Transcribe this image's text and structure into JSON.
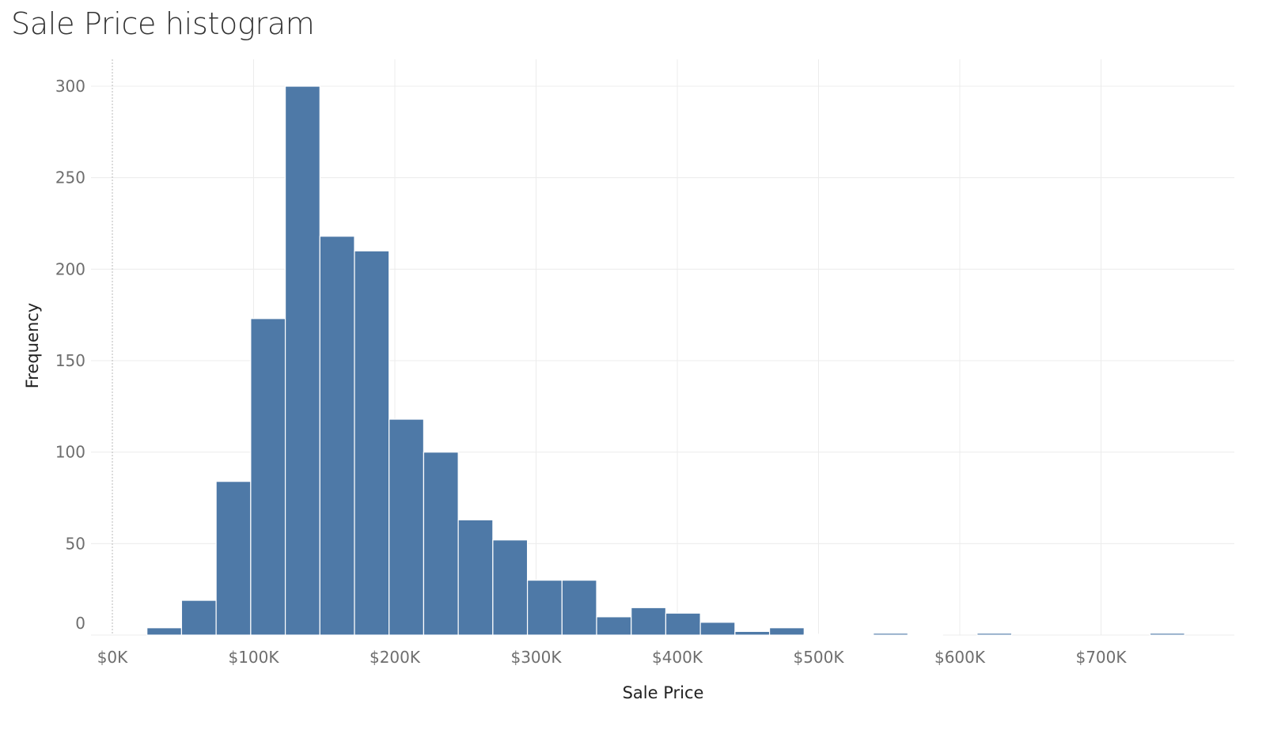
{
  "chart_data": {
    "type": "bar",
    "title": "Sale Price histogram",
    "xlabel": "Sale Price",
    "ylabel": "Frequency",
    "xlim": [
      0,
      820000
    ],
    "ylim": [
      0,
      300
    ],
    "x_ticks": [
      0,
      100000,
      200000,
      300000,
      400000,
      500000,
      600000,
      700000
    ],
    "x_tick_labels": [
      "$0K",
      "$100K",
      "$200K",
      "$300K",
      "$400K",
      "$500K",
      "$600K",
      "$700K"
    ],
    "y_ticks": [
      0,
      50,
      100,
      150,
      200,
      250,
      300
    ],
    "y_tick_labels": [
      "0",
      "50",
      "100",
      "150",
      "200",
      "250",
      "300"
    ],
    "bin_width": 24490,
    "bin_start": 24490,
    "bins": [
      {
        "start": 24490,
        "end": 48980,
        "count": 4
      },
      {
        "start": 48980,
        "end": 73470,
        "count": 19
      },
      {
        "start": 73470,
        "end": 97960,
        "count": 84
      },
      {
        "start": 97960,
        "end": 122450,
        "count": 173
      },
      {
        "start": 122450,
        "end": 146940,
        "count": 300
      },
      {
        "start": 146940,
        "end": 171430,
        "count": 218
      },
      {
        "start": 171430,
        "end": 195920,
        "count": 210
      },
      {
        "start": 195920,
        "end": 220410,
        "count": 118
      },
      {
        "start": 220410,
        "end": 244900,
        "count": 100
      },
      {
        "start": 244900,
        "end": 269390,
        "count": 63
      },
      {
        "start": 269390,
        "end": 293880,
        "count": 52
      },
      {
        "start": 293880,
        "end": 318370,
        "count": 30
      },
      {
        "start": 318370,
        "end": 342860,
        "count": 30
      },
      {
        "start": 342860,
        "end": 367350,
        "count": 10
      },
      {
        "start": 367350,
        "end": 391840,
        "count": 15
      },
      {
        "start": 391840,
        "end": 416330,
        "count": 12
      },
      {
        "start": 416330,
        "end": 440820,
        "count": 7
      },
      {
        "start": 440820,
        "end": 465310,
        "count": 2
      },
      {
        "start": 465310,
        "end": 489800,
        "count": 4
      },
      {
        "start": 489800,
        "end": 514290,
        "count": 0
      },
      {
        "start": 514290,
        "end": 538780,
        "count": 0
      },
      {
        "start": 538780,
        "end": 563270,
        "count": 1
      },
      {
        "start": 563270,
        "end": 587760,
        "count": 0
      },
      {
        "start": 612250,
        "end": 636740,
        "count": 1
      },
      {
        "start": 734700,
        "end": 759190,
        "count": 1
      }
    ],
    "grid": true,
    "colors": {
      "bar": "#4e79a7",
      "bar_edge": "#ffffff",
      "grid": "#ececec",
      "zero_line": "#b8b8b8"
    }
  }
}
